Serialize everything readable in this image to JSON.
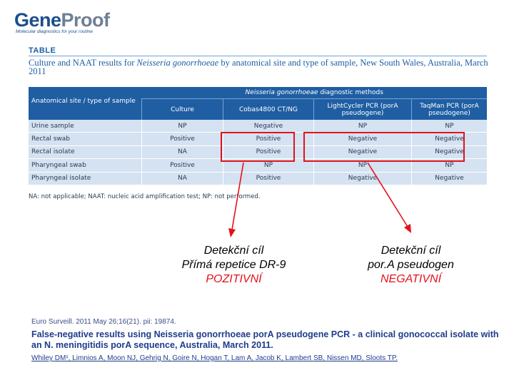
{
  "logo": {
    "part1": "Gene",
    "part2": "Proof",
    "tagline": "Molecular diagnostics for your routine"
  },
  "table_label": "TABLE",
  "caption": {
    "before": "Culture and NAAT results for ",
    "organism": "Neisseria gonorrhoeae",
    "after": " by anatomical site and type of sample, New South Wales, Australia, March 2011"
  },
  "table": {
    "site_header": "Anatomical site / type of sample",
    "methods_prefix": "Neisseria gonorrhoeae",
    "methods_suffix": " diagnostic methods",
    "columns": [
      "Culture",
      "Cobas4800 CT/NG",
      "LightCycler PCR (porA pseudogene)",
      "TaqMan PCR (porA pseudogene)"
    ],
    "rows": [
      {
        "site": "Urine sample",
        "values": [
          "NP",
          "Negative",
          "NP",
          "NP"
        ]
      },
      {
        "site": "Rectal swab",
        "values": [
          "Positive",
          "Positive",
          "Negative",
          "Negative"
        ]
      },
      {
        "site": "Rectal isolate",
        "values": [
          "NA",
          "Positive",
          "Negative",
          "Negative"
        ]
      },
      {
        "site": "Pharyngeal swab",
        "values": [
          "Positive",
          "NP",
          "NP",
          "NP"
        ]
      },
      {
        "site": "Pharyngeal isolate",
        "values": [
          "NA",
          "Positive",
          "Negative",
          "Negative"
        ]
      }
    ],
    "footnote": "NA: not applicable; NAAT: nucleic acid amplification test; NP: not performed."
  },
  "highlight_color": "#e4121b",
  "targets": [
    {
      "line1": "Detekční cíl",
      "line2": "Přímá repetice DR-9",
      "result": "POZITIVNÍ"
    },
    {
      "line1": "Detekční cíl",
      "line2": "por.A pseudogen",
      "result": "NEGATIVNÍ"
    }
  ],
  "reference": {
    "source": "Euro Surveill. 2011 May 26;16(21). pii: 19874.",
    "title": "False-negative results using Neisseria gonorrhoeae porA pseudogene PCR - a clinical gonococcal isolate with an N. meningitidis porA sequence, Australia, March 2011.",
    "authors": "Whiley DM¹, Limnios A, Moon NJ, Gehrig N, Goire N, Hogan T, Lam A, Jacob K, Lambert SB, Nissen MD, Sloots TP."
  }
}
